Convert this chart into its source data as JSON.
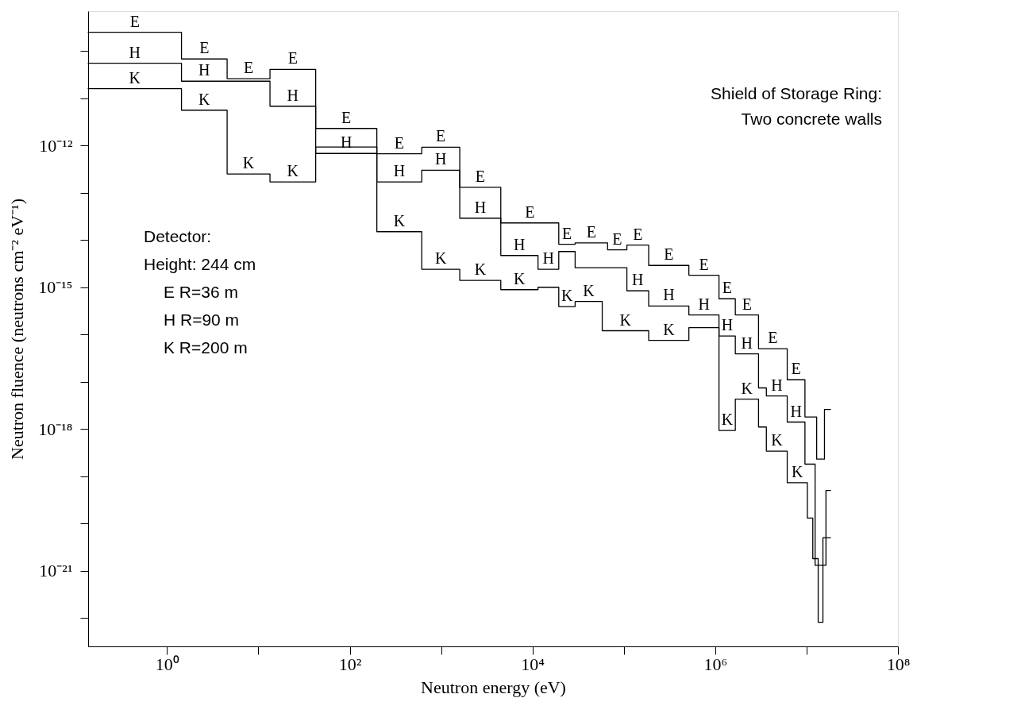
{
  "chart_data": {
    "type": "step",
    "xlabel": "Neutron energy (eV)",
    "ylabel": "Neutron fluence (neutrons cm⁻² eV⁻¹)",
    "log": "xy",
    "grid": false,
    "legend": false,
    "xlim": [
      0.137,
      100000000.0
    ],
    "ylim": [
      2.5e-23,
      7e-10
    ],
    "xticks": [
      {
        "value": 1,
        "label": "10⁰"
      },
      {
        "value": 10,
        "label": null
      },
      {
        "value": 100,
        "label": "10²"
      },
      {
        "value": 1000,
        "label": null
      },
      {
        "value": 10000,
        "label": "10⁴"
      },
      {
        "value": 100000,
        "label": null
      },
      {
        "value": 1000000,
        "label": "10⁶"
      },
      {
        "value": 10000000,
        "label": null
      },
      {
        "value": 100000000,
        "label": "10⁸"
      }
    ],
    "yticks": [
      {
        "value": 1e-10,
        "label": null
      },
      {
        "value": 1e-11,
        "label": null
      },
      {
        "value": 1e-12,
        "label": "10⁻¹²"
      },
      {
        "value": 1e-13,
        "label": null
      },
      {
        "value": 1e-14,
        "label": null
      },
      {
        "value": 1e-15,
        "label": "10⁻¹⁵"
      },
      {
        "value": 1e-16,
        "label": null
      },
      {
        "value": 1e-17,
        "label": null
      },
      {
        "value": 1e-18,
        "label": "10⁻¹⁸"
      },
      {
        "value": 1e-19,
        "label": null
      },
      {
        "value": 1e-20,
        "label": null
      },
      {
        "value": 1e-21,
        "label": "10⁻²¹"
      },
      {
        "value": 1e-22,
        "label": null
      }
    ],
    "annotations": [
      "Shield of Storage Ring:",
      "Two concrete walls",
      "Detector:",
      "Height:   244 cm",
      "E     R=36  m",
      "H     R=90  m",
      "K     R=200 m"
    ],
    "series": [
      {
        "name": "E",
        "color": "#000000",
        "x": [
          0.137,
          1.44,
          4.55,
          13.4,
          42.4,
          198,
          614,
          1600,
          4500,
          19400,
          29300,
          66400,
          108000,
          187000,
          515000,
          1100000.0,
          1660000.0,
          2980000.0,
          6140000.0,
          9600000.0,
          12900000.0,
          15700000.0,
          18300000.0
        ],
        "values": [
          2.5e-10,
          6.8e-11,
          2.6e-11,
          4.1e-11,
          2.3e-12,
          6.7e-13,
          9.2e-13,
          1.3e-13,
          2.3e-14,
          8.1e-15,
          8.7e-15,
          6.2e-15,
          7.8e-15,
          2.9e-15,
          1.8e-15,
          5.7e-16,
          2.6e-16,
          5e-17,
          1.1e-17,
          1.8e-18,
          2.3e-19,
          2.6e-18,
          2.6e-18
        ]
      },
      {
        "name": "H",
        "color": "#000000",
        "x": [
          0.137,
          1.44,
          4.55,
          13.4,
          42.4,
          198,
          614,
          1600,
          4500,
          11500,
          19400,
          29300,
          108000,
          187000,
          515000,
          1100000.0,
          1660000.0,
          2980000.0,
          3630000.0,
          6140000.0,
          9600000.0,
          12400000.0,
          16300000.0,
          18300000.0
        ],
        "values": [
          5.5e-11,
          2.3e-11,
          2.3e-11,
          6.8e-12,
          6.8e-13,
          1.7e-13,
          3e-13,
          2.9e-14,
          4.7e-15,
          2.4e-15,
          5.7e-15,
          2.6e-15,
          8.4e-16,
          4e-16,
          2.6e-16,
          9.3e-17,
          3.9e-17,
          7.4e-18,
          5e-18,
          1.4e-18,
          1.8e-19,
          1.3e-21,
          5e-20,
          5e-20
        ]
      },
      {
        "name": "K",
        "color": "#000000",
        "x": [
          0.137,
          1.44,
          4.55,
          13.4,
          42.4,
          198,
          614,
          1600,
          4500,
          11500,
          19400,
          29300,
          58000,
          187000,
          515000,
          1100000.0,
          1660000.0,
          2980000.0,
          3630000.0,
          6140000.0,
          10200000.0,
          11700000.0,
          13400000.0,
          15100000.0,
          18300000.0
        ],
        "values": [
          1.6e-11,
          5.6e-12,
          2.5e-13,
          1.7e-13,
          9.3e-13,
          1.5e-14,
          2.4e-15,
          1.4e-15,
          8.9e-16,
          1e-15,
          3.9e-16,
          5e-16,
          1.2e-16,
          7.5e-17,
          1.4e-16,
          9.3e-19,
          4.3e-18,
          1.1e-18,
          3.4e-19,
          7.3e-20,
          1.3e-20,
          1.8e-21,
          8.1e-23,
          5e-21,
          5e-21
        ]
      }
    ]
  }
}
